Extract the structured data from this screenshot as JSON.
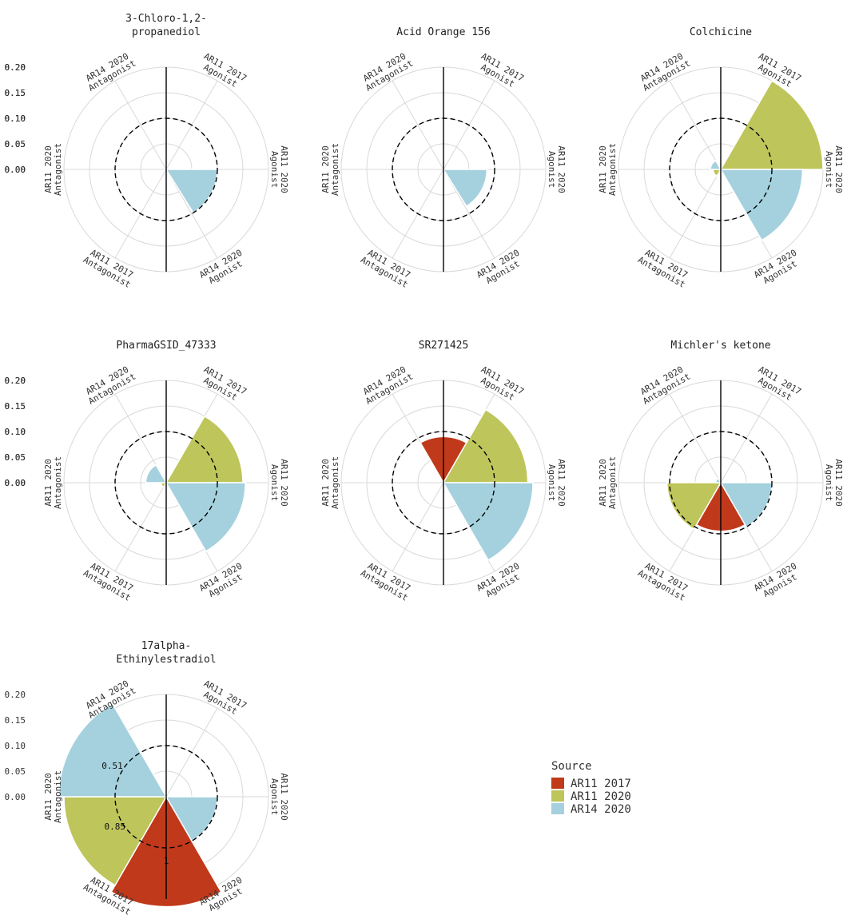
{
  "chart_data": {
    "type": "polar-bar",
    "ylim": [
      0,
      0.2
    ],
    "yticks": [
      "0.00",
      "0.05",
      "0.10",
      "0.15",
      "0.20"
    ],
    "threshold": 0.1,
    "categories": [
      {
        "line1": "AR11 2017",
        "line2": "Agonist"
      },
      {
        "line1": "AR11 2020",
        "line2": "Agonist"
      },
      {
        "line1": "AR14 2020",
        "line2": "Agonist"
      },
      {
        "line1": "AR11 2017",
        "line2": "Antagonist"
      },
      {
        "line1": "AR11 2020",
        "line2": "Antagonist"
      },
      {
        "line1": "AR14 2020",
        "line2": "Antagonist"
      }
    ],
    "legend": {
      "title": "Source",
      "position": "right",
      "entries": [
        {
          "name": "AR11 2017",
          "color": "#c0391b"
        },
        {
          "name": "AR11 2020",
          "color": "#bec55a"
        },
        {
          "name": "AR14 2020",
          "color": "#a5d1de"
        }
      ]
    },
    "panels": [
      {
        "title": [
          "3-Chloro-1,2-",
          "propanediol"
        ],
        "bars": [
          {
            "source": "AR14 2020",
            "category": 2,
            "start": 90,
            "end": 148,
            "value": 0.1
          }
        ]
      },
      {
        "title": [
          "Acid Orange 156"
        ],
        "bars": [
          {
            "source": "AR11 2020",
            "category": 1,
            "start": 85,
            "end": 92,
            "value": 0.004
          },
          {
            "source": "AR14 2020",
            "category": 2,
            "start": 90,
            "end": 148,
            "value": 0.085
          }
        ]
      },
      {
        "title": [
          "Colchicine"
        ],
        "bars": [
          {
            "source": "AR11 2020",
            "category": 1,
            "start": 30,
            "end": 90,
            "value": 0.2
          },
          {
            "source": "AR14 2020",
            "category": 2,
            "start": 90,
            "end": 150,
            "value": 0.16
          },
          {
            "source": "AR11 2020",
            "category": 4,
            "start": 210,
            "end": 270,
            "value": 0.015
          },
          {
            "source": "AR14 2020",
            "category": 5,
            "start": 270,
            "end": 330,
            "value": 0.02
          }
        ]
      },
      {
        "title": [
          "PharmaGSID_47333"
        ],
        "bars": [
          {
            "source": "AR11 2020",
            "category": 1,
            "start": 30,
            "end": 90,
            "value": 0.15
          },
          {
            "source": "AR14 2020",
            "category": 2,
            "start": 90,
            "end": 150,
            "value": 0.155
          },
          {
            "source": "AR11 2020",
            "category": 4,
            "start": 210,
            "end": 270,
            "value": 0.01
          },
          {
            "source": "AR14 2020",
            "category": 5,
            "start": 270,
            "end": 330,
            "value": 0.04
          }
        ]
      },
      {
        "title": [
          "SR271425"
        ],
        "bars": [
          {
            "source": "AR11 2017",
            "category": 0,
            "start": -30,
            "end": 30,
            "value": 0.09
          },
          {
            "source": "AR11 2020",
            "category": 1,
            "start": 30,
            "end": 90,
            "value": 0.165
          },
          {
            "source": "AR14 2020",
            "category": 2,
            "start": 90,
            "end": 150,
            "value": 0.175
          }
        ]
      },
      {
        "title": [
          "Michler's ketone"
        ],
        "bars": [
          {
            "source": "AR14 2020",
            "category": 2,
            "start": 90,
            "end": 150,
            "value": 0.1
          },
          {
            "source": "AR11 2017",
            "category": 3,
            "start": 150,
            "end": 210,
            "value": 0.095
          },
          {
            "source": "AR11 2020",
            "category": 4,
            "start": 210,
            "end": 270,
            "value": 0.105
          },
          {
            "source": "AR14 2020",
            "category": 5,
            "start": 270,
            "end": 330,
            "value": 0.01
          }
        ]
      },
      {
        "title": [
          "17alpha-",
          "Ethinylestradiol"
        ],
        "bars": [
          {
            "source": "AR14 2020",
            "category": 2,
            "start": 90,
            "end": 150,
            "value": 0.1
          },
          {
            "source": "AR11 2017",
            "category": 3,
            "start": 150,
            "end": 210,
            "value": 0.215,
            "label": "1"
          },
          {
            "source": "AR11 2020",
            "category": 4,
            "start": 210,
            "end": 270,
            "value": 0.2,
            "label": "0.85"
          },
          {
            "source": "AR14 2020",
            "category": 5,
            "start": 270,
            "end": 330,
            "value": 0.21,
            "label": "0.51"
          }
        ]
      }
    ]
  }
}
